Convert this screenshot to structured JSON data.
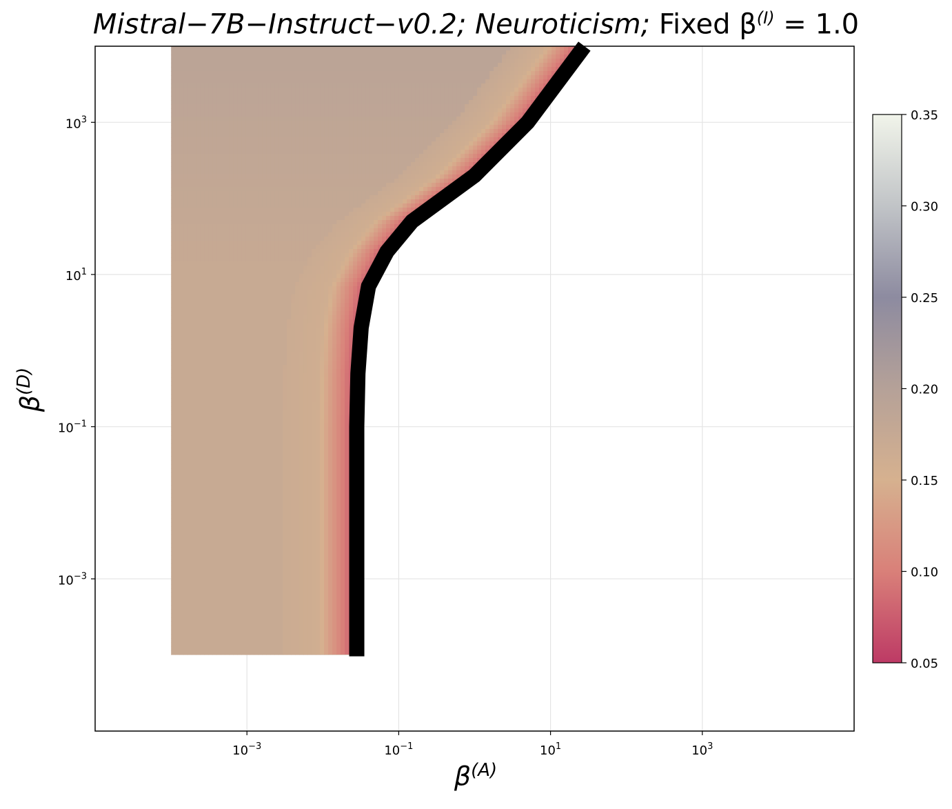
{
  "chart_data": {
    "type": "heatmap",
    "title": {
      "model": "Mistral−7B−Instruct−v0.2;",
      "trait": "Neuroticism;",
      "fixed": "Fixed β",
      "fixed_sup": "(I)",
      "fixed_value": "= 1.0"
    },
    "xlabel": {
      "base": "β",
      "sup": "(A)"
    },
    "ylabel": {
      "base": "β",
      "sup": "(D)"
    },
    "x_scale": "log",
    "y_scale": "log",
    "xlim": [
      1e-05,
      100000
    ],
    "ylim": [
      1e-05,
      10000
    ],
    "grid": true,
    "x_ticks": [
      {
        "value": 0.001,
        "base": "10",
        "exp": "−3"
      },
      {
        "value": 0.1,
        "base": "10",
        "exp": "−1"
      },
      {
        "value": 10,
        "base": "10",
        "exp": "1"
      },
      {
        "value": 1000,
        "base": "10",
        "exp": "3"
      }
    ],
    "y_ticks": [
      {
        "value": 0.001,
        "base": "10",
        "exp": "−3"
      },
      {
        "value": 0.1,
        "base": "10",
        "exp": "−1"
      },
      {
        "value": 10,
        "base": "10",
        "exp": "1"
      },
      {
        "value": 1000,
        "base": "10",
        "exp": "3"
      }
    ],
    "data_extent": {
      "x": [
        0.0001,
        30
      ],
      "y": [
        0.0001,
        10000
      ]
    },
    "colorbar": {
      "range": [
        0.05,
        0.35
      ],
      "ticks": [
        "0.05",
        "0.10",
        "0.15",
        "0.20",
        "0.25",
        "0.30",
        "0.35"
      ],
      "stops": [
        {
          "value": 0.05,
          "color": "#bd3a65"
        },
        {
          "value": 0.1,
          "color": "#d98079"
        },
        {
          "value": 0.15,
          "color": "#d6b18f"
        },
        {
          "value": 0.2,
          "color": "#b5a198"
        },
        {
          "value": 0.25,
          "color": "#8d8ba0"
        },
        {
          "value": 0.3,
          "color": "#c1c4c7"
        },
        {
          "value": 0.35,
          "color": "#f1f4ea"
        }
      ]
    },
    "boundary_contour": {
      "description_color": "#000000",
      "points": [
        {
          "x": 0.028,
          "y": 0.0001
        },
        {
          "x": 0.028,
          "y": 0.01
        },
        {
          "x": 0.028,
          "y": 0.1
        },
        {
          "x": 0.029,
          "y": 0.5
        },
        {
          "x": 0.032,
          "y": 2
        },
        {
          "x": 0.04,
          "y": 7
        },
        {
          "x": 0.07,
          "y": 20
        },
        {
          "x": 0.15,
          "y": 50
        },
        {
          "x": 1,
          "y": 200
        },
        {
          "x": 5,
          "y": 1000
        },
        {
          "x": 28,
          "y": 10000
        }
      ]
    },
    "heat_field": {
      "left_region_value": 0.175,
      "ridge_value": 0.16,
      "upper_region_value": 0.195,
      "near_boundary_value": 0.06
    }
  }
}
